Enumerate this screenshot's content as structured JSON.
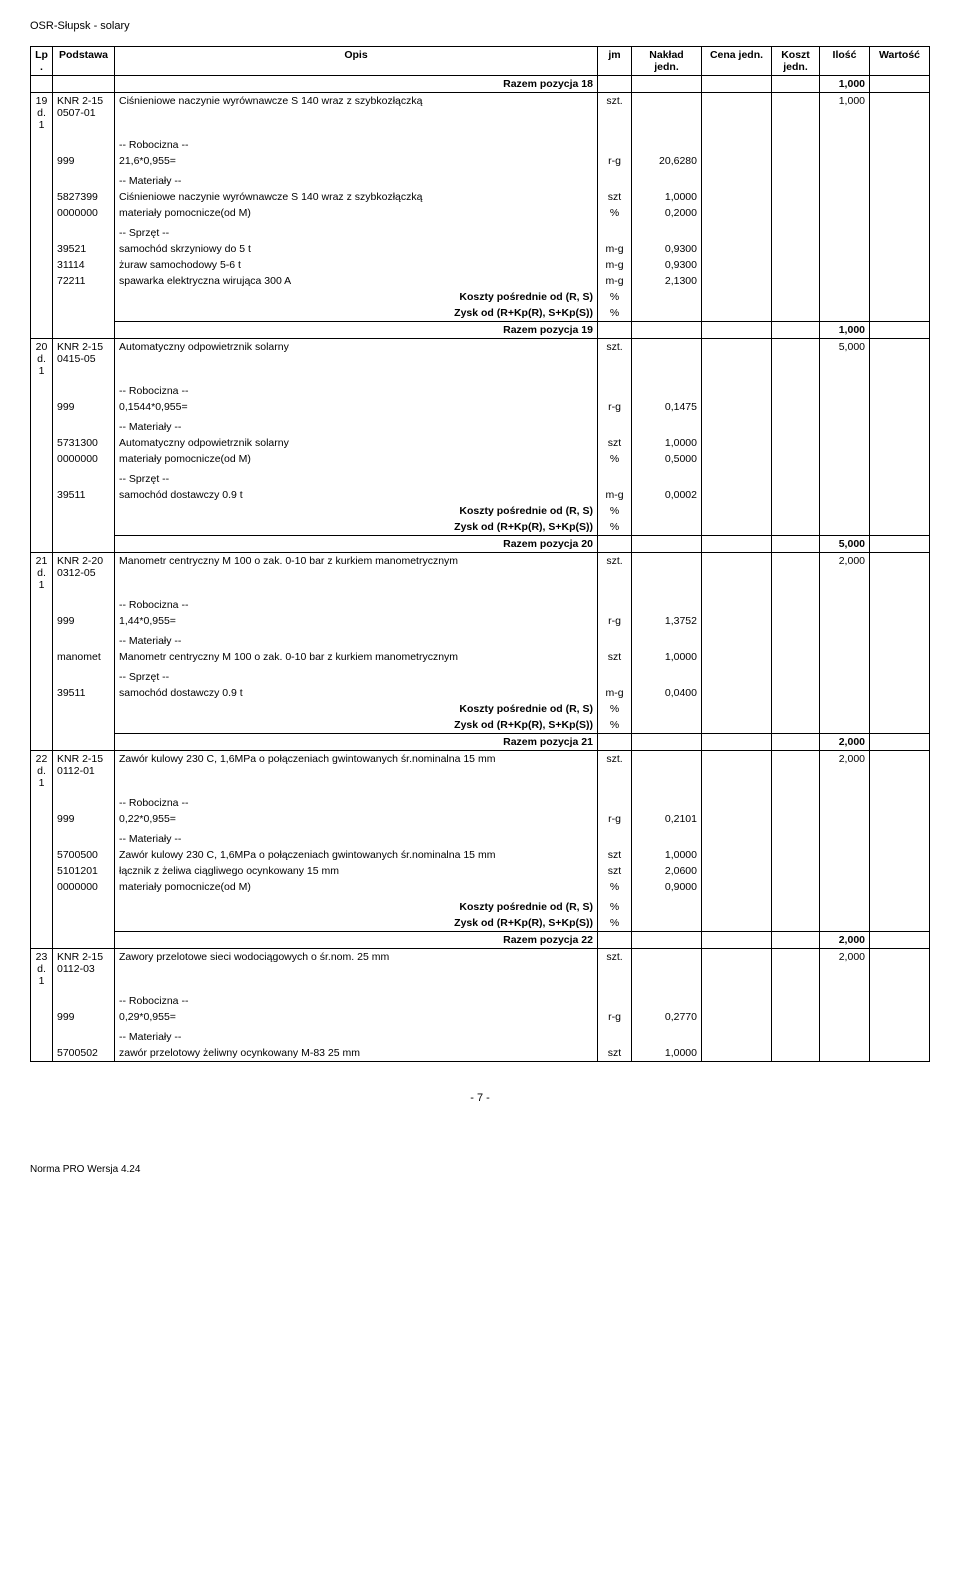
{
  "doc_title": "OSR-Słupsk - solary",
  "columns": [
    "Lp.",
    "Podstawa",
    "Opis",
    "jm",
    "Nakład jedn.",
    "Cena jedn.",
    "Koszt jedn.",
    "Ilość",
    "Wartość"
  ],
  "footer_page": "- 7 -",
  "footer_norma": "Norma PRO Wersja 4.24",
  "labels": {
    "robocizna": "-- Robocizna --",
    "materialy": "-- Materiały --",
    "sprzet": "-- Sprzęt --",
    "koszty": "Koszty pośrednie od (R, S)",
    "zysk": "Zysk od (R+Kp(R), S+Kp(S))"
  },
  "razem18": {
    "text": "Razem pozycja 18",
    "val": "1,000"
  },
  "row19": {
    "lp": "19",
    "d": "d.1",
    "pod": "KNR 2-15",
    "pod2": "0507-01",
    "opis": "Ciśnieniowe naczynie wyrównawcze S 140 wraz z szybkozłączką",
    "jm": "szt.",
    "ilosc": "1,000",
    "rob": [
      {
        "code": "999",
        "txt": "21,6*0,955=",
        "jm": "r-g",
        "val": "20,6280"
      }
    ],
    "mat": [
      {
        "code": "5827399",
        "txt": "Ciśnieniowe naczynie wyrównawcze S 140 wraz z szybkozłączką",
        "jm": "szt",
        "val": "1,0000"
      },
      {
        "code": "0000000",
        "txt": "materiały pomocnicze(od M)",
        "jm": "%",
        "val": "0,2000"
      }
    ],
    "spr": [
      {
        "code": "39521",
        "txt": "samochód skrzyniowy do 5 t",
        "jm": "m-g",
        "val": "0,9300"
      },
      {
        "code": "31114",
        "txt": "żuraw samochodowy 5-6 t",
        "jm": "m-g",
        "val": "0,9300"
      },
      {
        "code": "72211",
        "txt": "spawarka elektryczna wirująca 300 A",
        "jm": "m-g",
        "val": "2,1300"
      }
    ],
    "razem": {
      "text": "Razem pozycja 19",
      "val": "1,000"
    }
  },
  "row20": {
    "lp": "20",
    "d": "d.1",
    "pod": "KNR 2-15",
    "pod2": "0415-05",
    "opis": "Automatyczny odpowietrznik solarny",
    "jm": "szt.",
    "ilosc": "5,000",
    "rob": [
      {
        "code": "999",
        "txt": "0,1544*0,955=",
        "jm": "r-g",
        "val": "0,1475"
      }
    ],
    "mat": [
      {
        "code": "5731300",
        "txt": "Automatyczny odpowietrznik solarny",
        "jm": "szt",
        "val": "1,0000"
      },
      {
        "code": "0000000",
        "txt": "materiały pomocnicze(od M)",
        "jm": "%",
        "val": "0,5000"
      }
    ],
    "spr": [
      {
        "code": "39511",
        "txt": "samochód dostawczy 0.9 t",
        "jm": "m-g",
        "val": "0,0002"
      }
    ],
    "razem": {
      "text": "Razem pozycja 20",
      "val": "5,000"
    }
  },
  "row21": {
    "lp": "21",
    "d": "d.1",
    "pod": "KNR 2-20",
    "pod2": "0312-05",
    "opis": "Manometr centryczny M 100 o zak. 0-10 bar z kurkiem manometrycznym",
    "jm": "szt.",
    "ilosc": "2,000",
    "rob": [
      {
        "code": "999",
        "txt": "1,44*0,955=",
        "jm": "r-g",
        "val": "1,3752"
      }
    ],
    "mat": [
      {
        "code": "manomet",
        "txt": "Manometr centryczny M 100 o zak. 0-10 bar z kurkiem manometrycznym",
        "jm": "szt",
        "val": "1,0000"
      }
    ],
    "spr": [
      {
        "code": "39511",
        "txt": "samochód dostawczy 0.9 t",
        "jm": "m-g",
        "val": "0,0400"
      }
    ],
    "razem": {
      "text": "Razem pozycja 21",
      "val": "2,000"
    }
  },
  "row22": {
    "lp": "22",
    "d": "d.1",
    "pod": "KNR 2-15",
    "pod2": "0112-01",
    "opis": "Zawór kulowy 230 C, 1,6MPa o połączeniach gwintowanych śr.nominalna 15 mm",
    "jm": "szt.",
    "ilosc": "2,000",
    "rob": [
      {
        "code": "999",
        "txt": "0,22*0,955=",
        "jm": "r-g",
        "val": "0,2101"
      }
    ],
    "mat": [
      {
        "code": "5700500",
        "txt": "Zawór kulowy 230 C, 1,6MPa o połączeniach gwintowanych śr.nominalna 15 mm",
        "jm": "szt",
        "val": "1,0000"
      },
      {
        "code": "5101201",
        "txt": "łącznik z żeliwa ciągliwego ocynkowany 15 mm",
        "jm": "szt",
        "val": "2,0600"
      },
      {
        "code": "0000000",
        "txt": "materiały pomocnicze(od M)",
        "jm": "%",
        "val": "0,9000"
      }
    ],
    "spr": [],
    "razem": {
      "text": "Razem pozycja 22",
      "val": "2,000"
    }
  },
  "row23": {
    "lp": "23",
    "d": "d.1",
    "pod": "KNR 2-15",
    "pod2": "0112-03",
    "opis": "Zawory przelotowe sieci wodociągowych o śr.nom. 25 mm",
    "jm": "szt.",
    "ilosc": "2,000",
    "rob": [
      {
        "code": "999",
        "txt": "0,29*0,955=",
        "jm": "r-g",
        "val": "0,2770"
      }
    ],
    "mat": [
      {
        "code": "5700502",
        "txt": "zawór przelotowy żeliwny ocynkowany M-83 25 mm",
        "jm": "szt",
        "val": "1,0000"
      }
    ],
    "spr": []
  }
}
